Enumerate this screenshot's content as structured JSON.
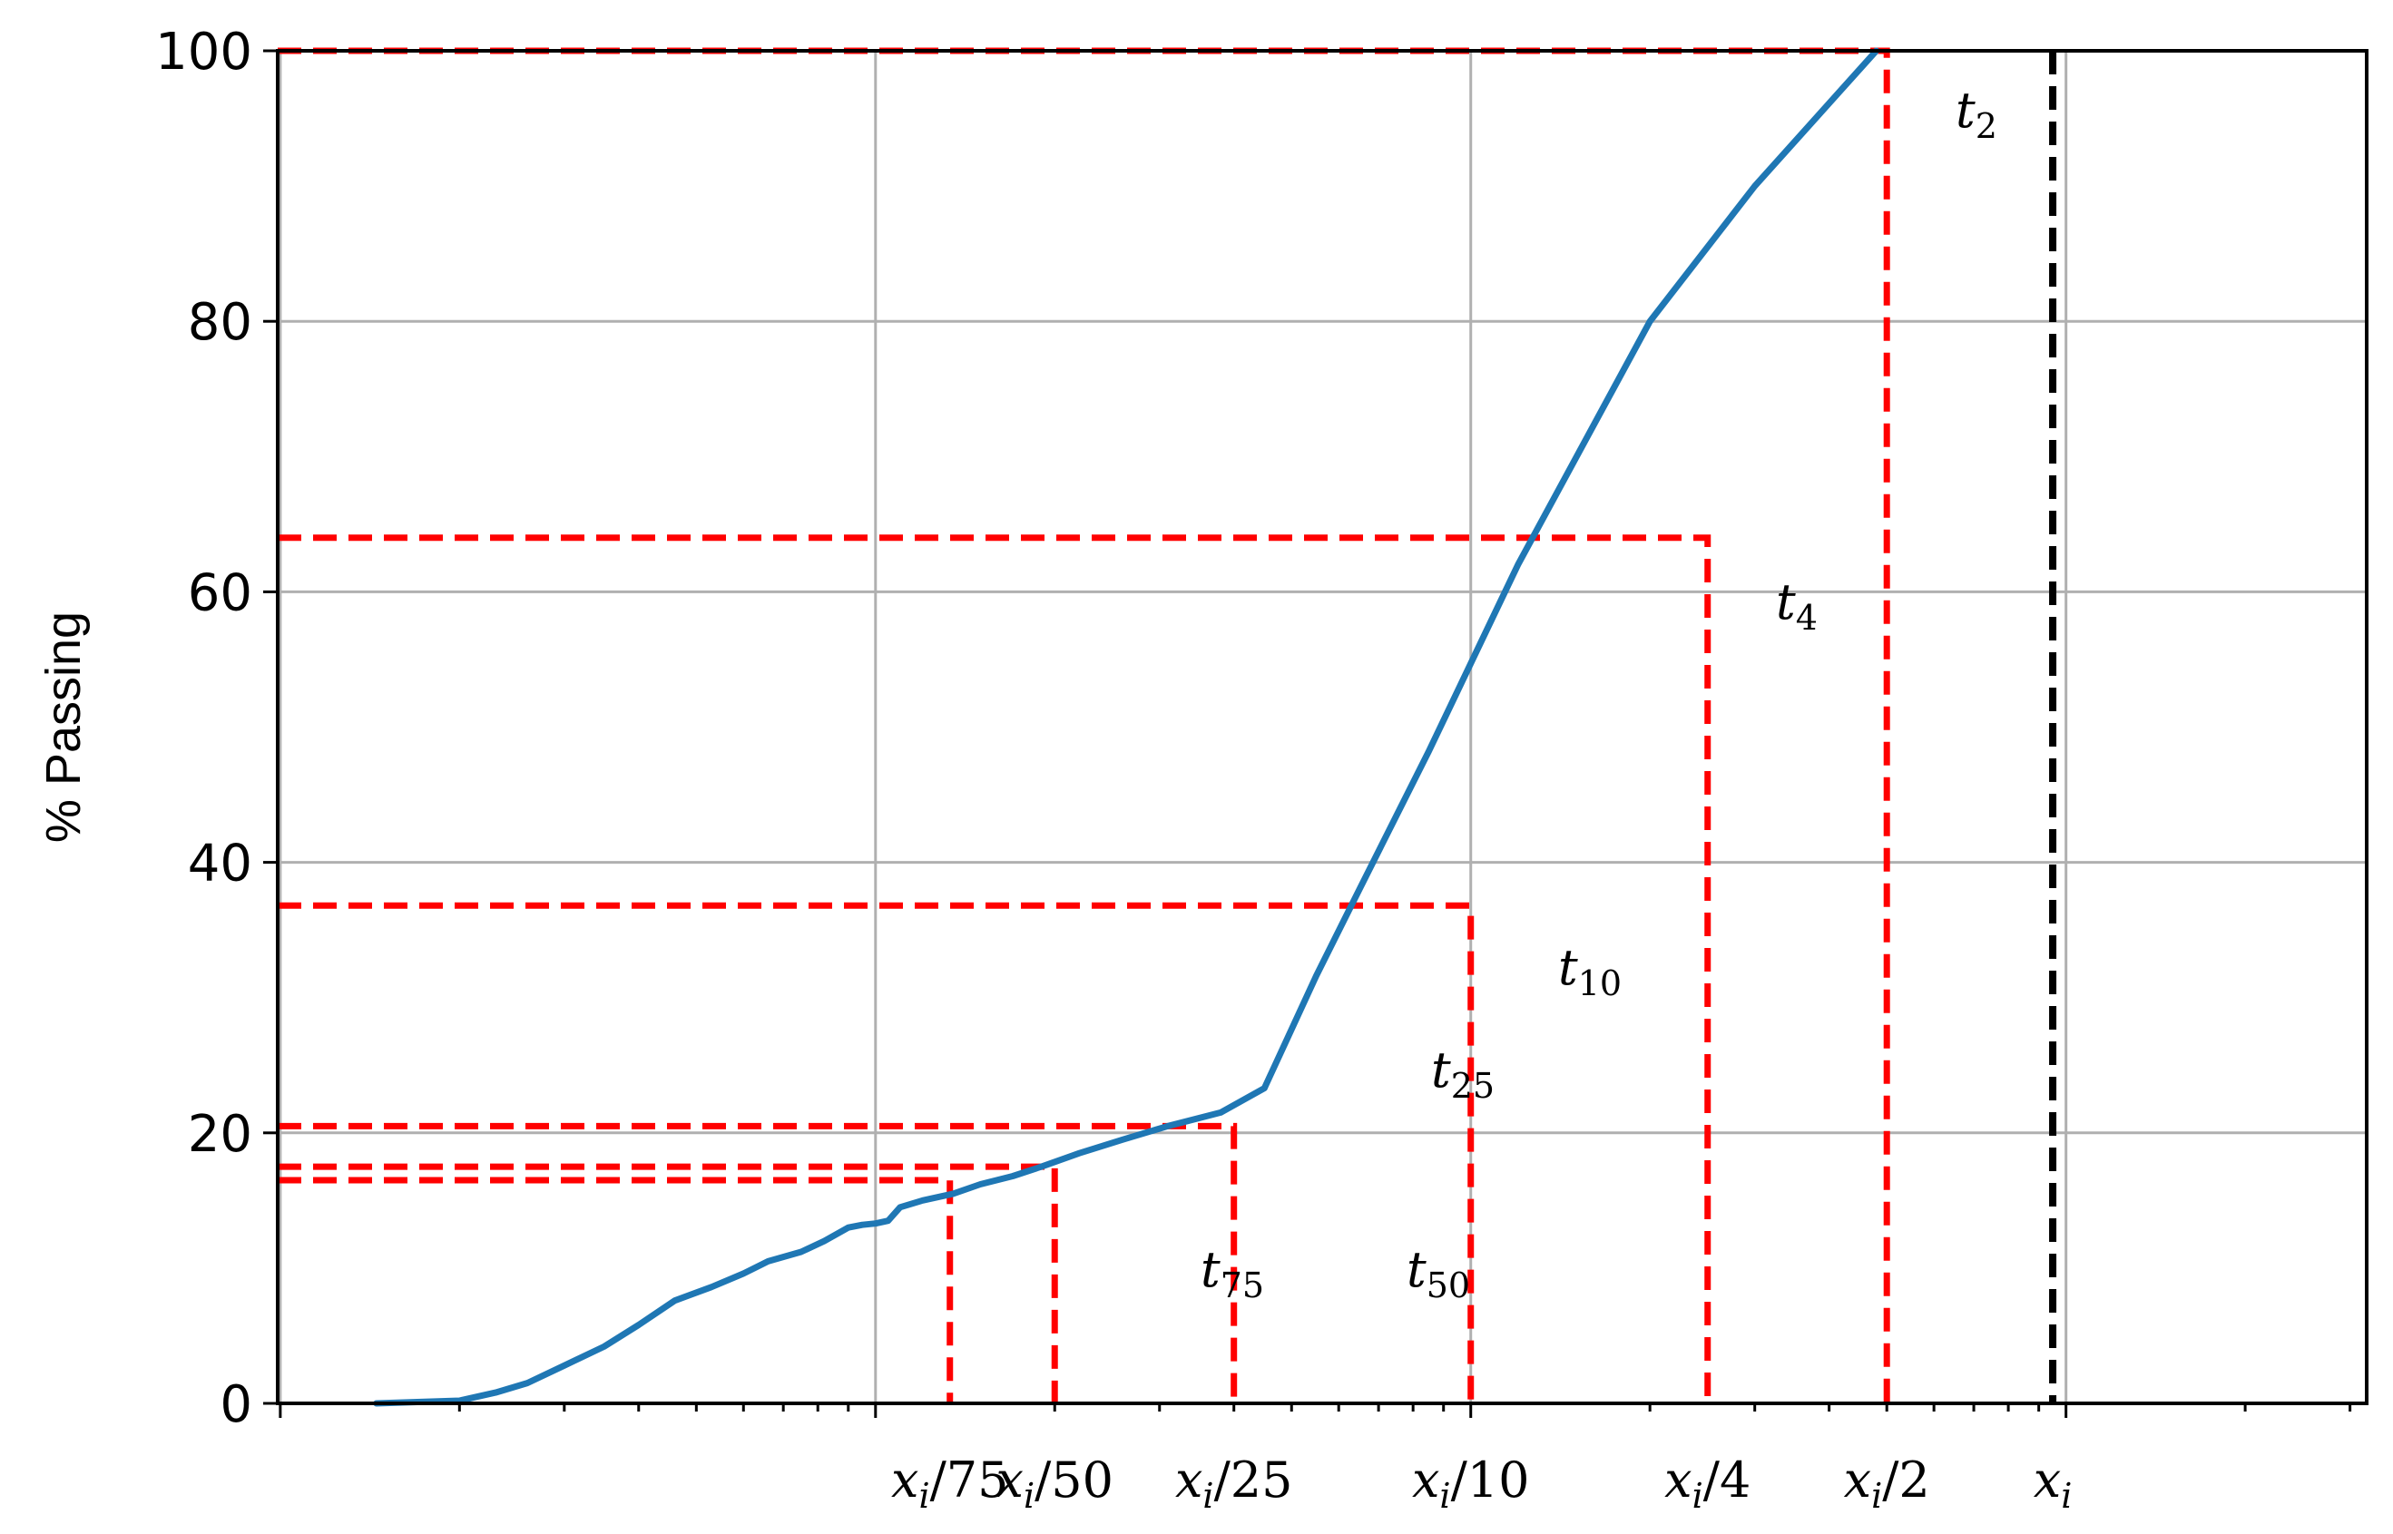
{
  "chart_data": {
    "type": "line",
    "title": "",
    "ylabel": "% Passing",
    "xlabel": "",
    "x_scale": "log",
    "x_relative_to": "x_i",
    "xlim_fraction_of_xi": [
      0.00099,
      3.2
    ],
    "ylim": [
      0,
      100
    ],
    "yticks": [
      0,
      20,
      40,
      60,
      80,
      100
    ],
    "grid": true,
    "colors": {
      "series": "#1f77b4",
      "t_lines": "#ff0000",
      "xi_line": "#000000",
      "grid": "#b0b0b0"
    },
    "x_ticks": [
      {
        "base": "x",
        "sub": "i",
        "suffix": "/75",
        "fraction": 0.013333
      },
      {
        "base": "x",
        "sub": "i",
        "suffix": "/50",
        "fraction": 0.02
      },
      {
        "base": "x",
        "sub": "i",
        "suffix": "/25",
        "fraction": 0.04
      },
      {
        "base": "x",
        "sub": "i",
        "suffix": "/10",
        "fraction": 0.1
      },
      {
        "base": "x",
        "sub": "i",
        "suffix": "/4",
        "fraction": 0.25
      },
      {
        "base": "x",
        "sub": "i",
        "suffix": "/2",
        "fraction": 0.5
      },
      {
        "base": "x",
        "sub": "i",
        "suffix": "",
        "fraction": 0.95
      }
    ],
    "series": [
      {
        "x": [
          0.00145,
          0.0017,
          0.002,
          0.0023,
          0.0026,
          0.003,
          0.0035,
          0.004,
          0.0046,
          0.0053,
          0.006,
          0.0066,
          0.0075,
          0.0082,
          0.009,
          0.0095,
          0.01,
          0.0105,
          0.011,
          0.012,
          0.0135,
          0.015,
          0.017,
          0.019,
          0.022,
          0.026,
          0.031,
          0.038,
          0.045,
          0.055,
          0.065,
          0.085,
          0.12,
          0.2,
          0.3,
          0.48
        ],
        "y": [
          0,
          0.1,
          0.2,
          0.8,
          1.5,
          2.8,
          4.2,
          5.8,
          7.6,
          8.6,
          9.6,
          10.5,
          11.2,
          12.0,
          13.0,
          13.2,
          13.3,
          13.5,
          14.5,
          15.0,
          15.5,
          16.2,
          16.8,
          17.5,
          18.5,
          19.5,
          20.5,
          21.5,
          23.3,
          31.6,
          38.0,
          48.2,
          62.0,
          80.0,
          90.0,
          100.0
        ]
      }
    ],
    "t_markers": [
      {
        "label": "t",
        "sub": "2",
        "y": 100,
        "x_fraction": 0.5
      },
      {
        "label": "t",
        "sub": "4",
        "y": 64,
        "x_fraction": 0.25
      },
      {
        "label": "t",
        "sub": "10",
        "y": 36.8,
        "x_fraction": 0.1
      },
      {
        "label": "t",
        "sub": "25",
        "y": 20.5,
        "x_fraction": 0.04
      },
      {
        "label": "t",
        "sub": "50",
        "y": 17.5,
        "x_fraction": 0.02
      },
      {
        "label": "t",
        "sub": "75",
        "y": 16.5,
        "x_fraction": 0.013333
      }
    ],
    "xi_line_fraction": 0.95
  }
}
